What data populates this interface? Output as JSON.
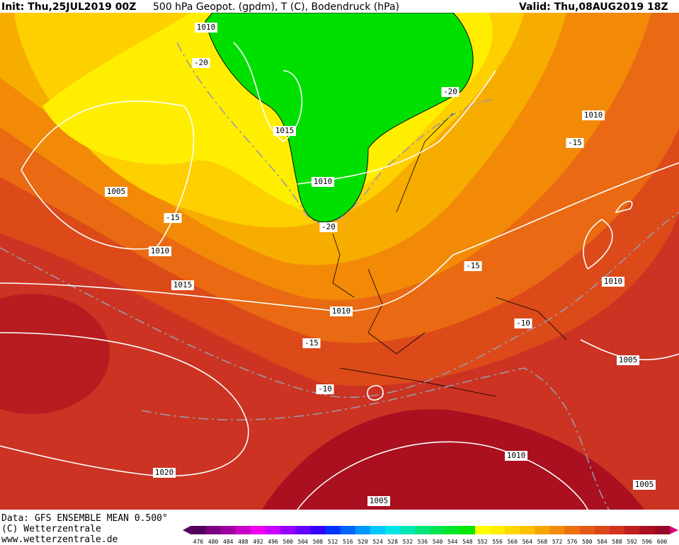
{
  "header": {
    "init": "Init: Thu,25JUL2019 00Z",
    "title": "500 hPa Geopot. (gpdm), T (C), Bodendruck (hPa)",
    "valid": "Valid: Thu,08AUG2019 18Z"
  },
  "contour_labels": [
    "1010",
    "-20",
    "1015",
    "1010",
    "-20",
    "1005",
    "-15",
    "1010",
    "1015",
    "1010",
    "-15",
    "-10",
    "1020",
    "1005",
    "-20",
    "1010",
    "-15",
    "-15",
    "-10",
    "1010",
    "1005",
    "1010",
    "1005"
  ],
  "footer": {
    "source": "Data: GFS ENSEMBLE MEAN 0.500°",
    "copyright": "(C) Wetterzentrale",
    "url": "www.wetterzentrale.de"
  },
  "legend": {
    "ticks": [
      476,
      480,
      484,
      488,
      492,
      496,
      500,
      504,
      508,
      512,
      516,
      520,
      524,
      528,
      532,
      536,
      540,
      544,
      548,
      552,
      556,
      560,
      564,
      568,
      572,
      576,
      580,
      584,
      588,
      592,
      596,
      600
    ],
    "colors": [
      "#50005a",
      "#7a007f",
      "#a000a0",
      "#c800c8",
      "#ee00ee",
      "#c800ff",
      "#9600ff",
      "#6400ff",
      "#3200ff",
      "#0032ff",
      "#0064ff",
      "#0096ff",
      "#00c8ff",
      "#00e6e6",
      "#00e6b4",
      "#00e678",
      "#00e650",
      "#00e628",
      "#00e600",
      "#ffff00",
      "#ffee00",
      "#ffd700",
      "#fcc000",
      "#f5a500",
      "#f08c0a",
      "#ea7010",
      "#e35a16",
      "#dc4619",
      "#d2321e",
      "#be2020",
      "#aa1020",
      "#960a28"
    ]
  }
}
